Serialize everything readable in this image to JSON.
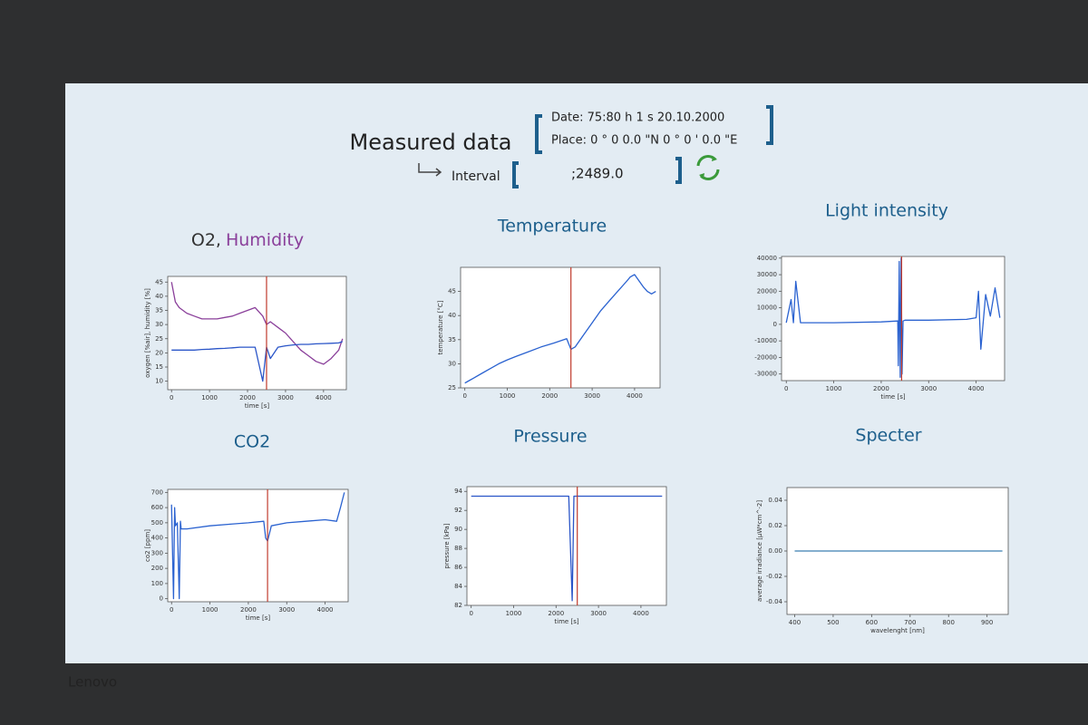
{
  "header": {
    "title": "Measured data",
    "date": "Date: 75:80  h  1 s     20.10.2000",
    "place": "Place:  0 ° 0    0.0  \"N  0 ° 0 ' 0.0  \"E",
    "interval_label": "Interval",
    "interval_value": ";2489.0",
    "brand": "Lenovo"
  },
  "chart_data": [
    {
      "type": "line",
      "title": [
        "O2,",
        "Humidity"
      ],
      "title_colors": [
        "#333333",
        "#8a3f9a"
      ],
      "xlabel": "time [s]",
      "ylabel": "oxygen [%air], humidity [%]",
      "x": [
        0,
        100,
        200,
        400,
        600,
        800,
        1000,
        1200,
        1400,
        1600,
        1800,
        2000,
        2200,
        2400,
        2500,
        2600,
        2800,
        3000,
        3200,
        3400,
        3600,
        3800,
        4000,
        4200,
        4400,
        4500
      ],
      "series": [
        {
          "color": "#8a3f9a",
          "values": [
            45,
            38,
            36,
            34,
            33,
            32,
            32,
            32,
            32.5,
            33,
            34,
            35,
            36,
            33,
            30,
            31,
            29,
            27,
            24,
            21,
            19,
            17,
            16,
            18,
            21,
            25
          ]
        },
        {
          "color": "#2a55c8",
          "values": [
            21,
            21,
            21,
            21,
            21,
            21.2,
            21.3,
            21.5,
            21.6,
            21.8,
            22,
            22,
            22,
            10,
            22,
            18,
            22,
            22.5,
            22.8,
            23,
            23,
            23.2,
            23.3,
            23.4,
            23.5,
            24
          ]
        }
      ],
      "cursor_x": 2500,
      "xlim": [
        -100,
        4600
      ],
      "xticks": [
        0,
        1000,
        2000,
        3000,
        4000
      ],
      "ylim": [
        7,
        47
      ],
      "yticks": [
        10,
        15,
        20,
        25,
        30,
        35,
        40,
        45
      ]
    },
    {
      "type": "line",
      "title": "Temperature",
      "xlabel": "",
      "ylabel": "temperature [°C]",
      "x": [
        0,
        100,
        200,
        400,
        600,
        800,
        1000,
        1200,
        1500,
        1800,
        2100,
        2400,
        2500,
        2600,
        2800,
        3000,
        3200,
        3400,
        3600,
        3800,
        3900,
        4000,
        4200,
        4300,
        4400,
        4500
      ],
      "series": [
        {
          "color": "#2a62d0",
          "values": [
            26,
            26.5,
            27,
            28,
            29,
            30,
            30.8,
            31.5,
            32.5,
            33.5,
            34.3,
            35.2,
            33,
            33.5,
            36,
            38.5,
            41,
            43,
            45,
            47,
            48,
            48.5,
            46,
            45,
            44.5,
            45
          ]
        }
      ],
      "cursor_x": 2500,
      "xlim": [
        -100,
        4600
      ],
      "xticks": [
        0,
        1000,
        2000,
        3000,
        4000
      ],
      "ylim": [
        25,
        50
      ],
      "yticks": [
        25,
        30,
        35,
        40,
        45
      ]
    },
    {
      "type": "line",
      "title": "Light intensity",
      "xlabel": "time [s]",
      "ylabel": "",
      "x": [
        0,
        100,
        150,
        200,
        300,
        1000,
        2000,
        2350,
        2360,
        2380,
        2400,
        2420,
        2440,
        2460,
        2500,
        3000,
        3800,
        4000,
        4050,
        4100,
        4200,
        4300,
        4400,
        4500
      ],
      "series": [
        {
          "color": "#2a62d0",
          "values": [
            1000,
            15000,
            1000,
            26000,
            1000,
            1000,
            1500,
            2000,
            -25000,
            38000,
            -32000,
            40000,
            -30000,
            2000,
            2500,
            2500,
            3000,
            4000,
            20000,
            -15000,
            18000,
            5000,
            22000,
            4000
          ]
        }
      ],
      "cursor_x": 2430,
      "xlim": [
        -100,
        4600
      ],
      "xticks": [
        0,
        1000,
        2000,
        3000,
        4000
      ],
      "ylim": [
        -34000,
        41000
      ],
      "yticks": [
        -30000,
        -20000,
        -10000,
        0,
        10000,
        20000,
        30000,
        40000
      ]
    },
    {
      "type": "line",
      "title": "CO2",
      "xlabel": "time [s]",
      "ylabel": "co2 [ppm]",
      "x": [
        0,
        50,
        80,
        100,
        150,
        200,
        230,
        250,
        400,
        1000,
        1500,
        2000,
        2400,
        2450,
        2500,
        2600,
        3000,
        3500,
        4000,
        4300,
        4400,
        4500
      ],
      "series": [
        {
          "color": "#2a62d0",
          "values": [
            620,
            0,
            600,
            480,
            500,
            0,
            510,
            460,
            460,
            480,
            490,
            500,
            510,
            400,
            380,
            480,
            500,
            510,
            520,
            510,
            600,
            700
          ]
        }
      ],
      "cursor_x": 2500,
      "xlim": [
        -100,
        4600
      ],
      "xticks": [
        0,
        1000,
        2000,
        3000,
        4000
      ],
      "ylim": [
        -20,
        720
      ],
      "yticks": [
        0,
        100,
        200,
        300,
        400,
        500,
        600,
        700
      ]
    },
    {
      "type": "line",
      "title": "Pressure",
      "xlabel": "time [s]",
      "ylabel": "pressure [kPa]",
      "x": [
        0,
        1000,
        2000,
        2300,
        2380,
        2420,
        2450,
        2600,
        4500
      ],
      "series": [
        {
          "color": "#2a55c8",
          "values": [
            93.5,
            93.5,
            93.5,
            93.5,
            82.5,
            93.5,
            93.5,
            93.5,
            93.5
          ]
        }
      ],
      "cursor_x": 2500,
      "xlim": [
        -100,
        4600
      ],
      "xticks": [
        0,
        1000,
        2000,
        3000,
        4000
      ],
      "ylim": [
        82,
        94.5
      ],
      "yticks": [
        82,
        84,
        86,
        88,
        90,
        92,
        94
      ]
    },
    {
      "type": "line",
      "title": "Specter",
      "xlabel": "wavelenght [nm]",
      "ylabel": "average irradiance [µW*cm^-2]",
      "x": [
        400,
        500,
        600,
        700,
        800,
        900,
        940
      ],
      "series": [
        {
          "color": "#3a7fb0",
          "values": [
            0,
            0,
            0,
            0,
            0,
            0,
            0
          ]
        }
      ],
      "xlim": [
        380,
        955
      ],
      "xticks": [
        400,
        500,
        600,
        700,
        800,
        900
      ],
      "ylim": [
        -0.05,
        0.05
      ],
      "yticks": [
        -0.04,
        -0.02,
        {
          "value": 0,
          "label": "0.00"
        },
        0.02,
        0.04
      ]
    }
  ]
}
